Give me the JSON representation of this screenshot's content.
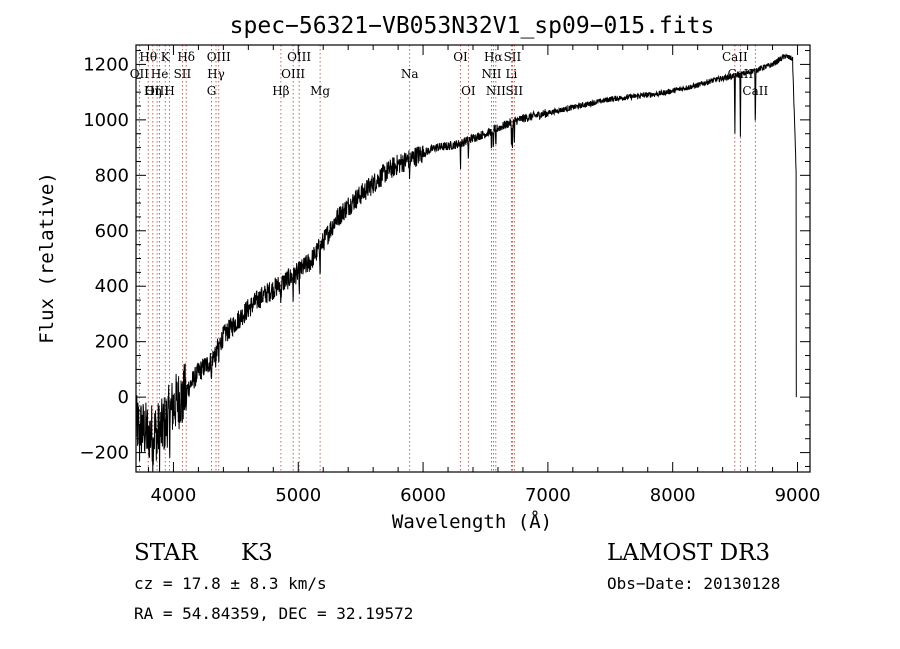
{
  "chart_data": {
    "type": "line",
    "title": "spec−56321−VB053N32V1_sp09−015.fits",
    "xlabel": "Wavelength (Å)",
    "ylabel": "Flux (relative)",
    "xlim": [
      3700,
      9100
    ],
    "ylim": [
      -270,
      1270
    ],
    "x_ticks": [
      4000,
      5000,
      6000,
      7000,
      8000,
      9000
    ],
    "y_ticks": [
      -200,
      0,
      200,
      400,
      600,
      800,
      1000,
      1200
    ],
    "x_tick_labels": [
      "4000",
      "5000",
      "6000",
      "7000",
      "8000",
      "9000"
    ],
    "y_tick_labels": [
      "−200",
      "0",
      "200",
      "400",
      "600",
      "800",
      "1000",
      "1200"
    ],
    "series": [
      {
        "x": [
          3700,
          3800,
          3900,
          4000,
          4100,
          4200,
          4300,
          4400,
          4500,
          4600,
          4700,
          4800,
          4900,
          5000,
          5100,
          5200,
          5300,
          5400,
          5500,
          5600,
          5700,
          5800,
          5900,
          6000,
          6100,
          6200,
          6300,
          6400,
          6500,
          6600,
          6700,
          6800,
          6900,
          7000,
          7100,
          7200,
          7300,
          7400,
          7500,
          7600,
          7700,
          7800,
          7900,
          8000,
          8100,
          8200,
          8300,
          8400,
          8500,
          8600,
          8700,
          8800,
          8900,
          8960,
          8990
        ],
        "y": [
          -100,
          -130,
          -120,
          -30,
          20,
          90,
          130,
          220,
          270,
          320,
          360,
          390,
          420,
          450,
          490,
          560,
          640,
          690,
          730,
          770,
          810,
          840,
          860,
          880,
          900,
          905,
          915,
          935,
          950,
          970,
          990,
          1005,
          1015,
          1025,
          1035,
          1045,
          1055,
          1065,
          1075,
          1080,
          1085,
          1090,
          1095,
          1105,
          1115,
          1125,
          1140,
          1150,
          1160,
          1170,
          1185,
          1200,
          1230,
          1220,
          800
        ]
      }
    ],
    "lines": [
      {
        "label": "Hθ",
        "x": 3798,
        "row": 1
      },
      {
        "label": "OII",
        "x": 3727,
        "row": 2
      },
      {
        "label": "OIII",
        "x": 3869,
        "row": 3
      },
      {
        "label": "He",
        "x": 3889,
        "row": 2
      },
      {
        "label": "Hη",
        "x": 3835,
        "row": 3
      },
      {
        "label": "K",
        "x": 3934,
        "row": 1
      },
      {
        "label": "H",
        "x": 3969,
        "row": 3
      },
      {
        "label": "SII",
        "x": 4072,
        "row": 2
      },
      {
        "label": "Hδ",
        "x": 4102,
        "row": 1
      },
      {
        "label": "OIII",
        "x": 4363,
        "row": 1
      },
      {
        "label": "Hγ",
        "x": 4341,
        "row": 2
      },
      {
        "label": "G",
        "x": 4305,
        "row": 3
      },
      {
        "label": "Hβ",
        "x": 4861,
        "row": 3
      },
      {
        "label": "OIII",
        "x": 5007,
        "row": 1
      },
      {
        "label": "OIII",
        "x": 4959,
        "row": 2
      },
      {
        "label": "Mg",
        "x": 5175,
        "row": 3
      },
      {
        "label": "Na",
        "x": 5893,
        "row": 2
      },
      {
        "label": "OI",
        "x": 6300,
        "row": 1
      },
      {
        "label": "OI",
        "x": 6363,
        "row": 3
      },
      {
        "label": "Hα",
        "x": 6563,
        "row": 1
      },
      {
        "label": "NII",
        "x": 6548,
        "row": 2
      },
      {
        "label": "NII",
        "x": 6583,
        "row": 3
      },
      {
        "label": "SII",
        "x": 6716,
        "row": 1
      },
      {
        "label": "Li",
        "x": 6708,
        "row": 2
      },
      {
        "label": "SII",
        "x": 6731,
        "row": 3
      },
      {
        "label": "CaII",
        "x": 8498,
        "row": 1
      },
      {
        "label": "CaII",
        "x": 8542,
        "row": 2
      },
      {
        "label": "CaII",
        "x": 8662,
        "row": 3
      }
    ]
  },
  "info": {
    "class": "STAR",
    "subclass": "K3",
    "survey": "LAMOST DR3",
    "cz": "cz = 17.8 ± 8.3 km/s",
    "obs_date": "Obs−Date: 20130128",
    "coords": "RA =  54.84359, DEC =  32.19572"
  }
}
